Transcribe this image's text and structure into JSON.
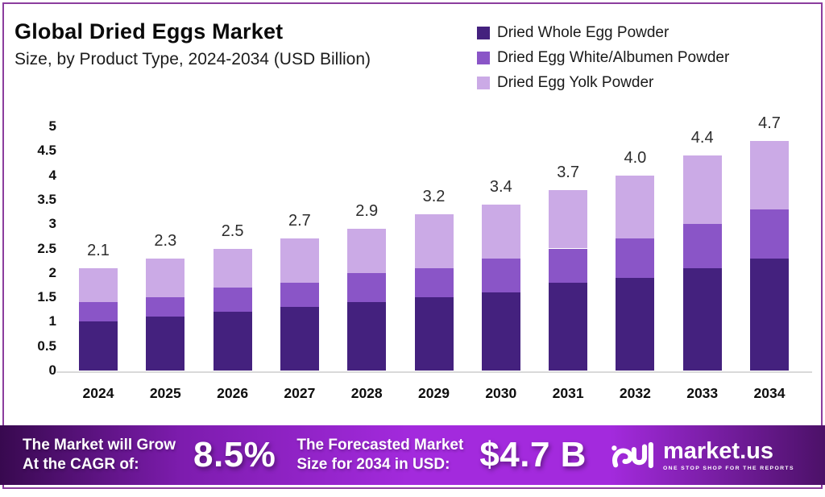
{
  "header": {
    "title": "Global Dried Eggs Market",
    "subtitle": "Size, by Product Type, 2024-2034 (USD Billion)"
  },
  "legend": [
    {
      "label": "Dried Whole Egg Powder",
      "color": "#44217e"
    },
    {
      "label": "Dried Egg White/Albumen Powder",
      "color": "#8a55c7"
    },
    {
      "label": "Dried Egg Yolk Powder",
      "color": "#cbaae6"
    }
  ],
  "chart_data": {
    "type": "bar",
    "subtype": "stacked",
    "categories": [
      "2024",
      "2025",
      "2026",
      "2027",
      "2028",
      "2029",
      "2030",
      "2031",
      "2032",
      "2033",
      "2034"
    ],
    "series": [
      {
        "name": "Dried Whole Egg Powder",
        "color": "#44217e",
        "values": [
          1.0,
          1.1,
          1.2,
          1.3,
          1.4,
          1.5,
          1.6,
          1.8,
          1.9,
          2.1,
          2.3
        ]
      },
      {
        "name": "Dried Egg White/Albumen Powder",
        "color": "#8a55c7",
        "values": [
          0.4,
          0.4,
          0.5,
          0.5,
          0.6,
          0.6,
          0.7,
          0.7,
          0.8,
          0.9,
          1.0
        ]
      },
      {
        "name": "Dried Egg Yolk Powder",
        "color": "#cbaae6",
        "values": [
          0.7,
          0.8,
          0.8,
          0.9,
          0.9,
          1.1,
          1.1,
          1.2,
          1.3,
          1.4,
          1.4
        ]
      }
    ],
    "totals_display": [
      "2.1",
      "2.3",
      "2.5",
      "2.7",
      "2.9",
      "3.2",
      "3.4",
      "3.7",
      "4.0",
      "4.4",
      "4.7"
    ],
    "y_ticks": [
      "0",
      "0.5",
      "1",
      "1.5",
      "2",
      "2.5",
      "3",
      "3.5",
      "4",
      "4.5",
      "5"
    ],
    "ylim": [
      0,
      5
    ],
    "grid": false,
    "legend_position": "top-right",
    "title": "Global Dried Eggs Market",
    "xlabel": "",
    "ylabel": ""
  },
  "banner": {
    "cagr_label_line1": "The Market will Grow",
    "cagr_label_line2": "At the CAGR of:",
    "cagr_value": "8.5%",
    "forecast_label_line1": "The Forecasted Market",
    "forecast_label_line2": "Size for 2034 in USD:",
    "forecast_value": "$4.7 B",
    "logo_text": "market.us",
    "logo_tagline": "ONE STOP SHOP FOR THE REPORTS"
  },
  "colors": {
    "frame_border": "#8b3d9e",
    "axis_line": "#d9d9d9",
    "banner_gradient_left": "#38094f",
    "banner_gradient_mid": "#a32add",
    "banner_gradient_right": "#4c1168"
  }
}
